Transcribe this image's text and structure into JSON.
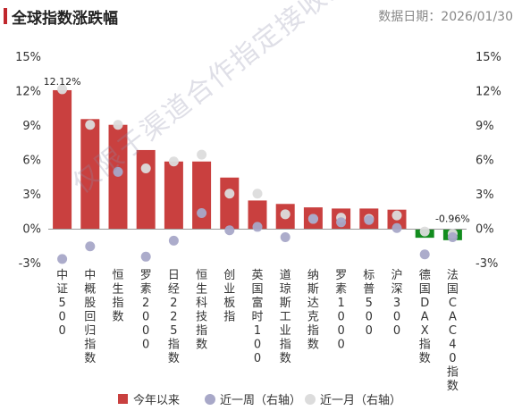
{
  "header": {
    "title": "全球指数涨跌幅",
    "date_label": "数据日期：2026/01/30"
  },
  "watermark": "仅限于渠道合作指定接收人使用",
  "colors": {
    "positive_bar": "#c9403f",
    "negative_bar": "#128c1e",
    "week_dot": "#a8a8c8",
    "month_dot": "#dcdcdc",
    "title_accent": "#c0272d"
  },
  "chart_data": {
    "type": "bar",
    "categories": [
      "中证500",
      "中概股回归指数",
      "恒生指数",
      "罗素2000",
      "日经225指数",
      "恒生科技指数",
      "创业板指",
      "英国富时100",
      "道琼斯工业指数",
      "纳斯达克指数",
      "罗素1000",
      "标普500",
      "沪深300",
      "德国DAX指数",
      "法国CAC40指数"
    ],
    "series": [
      {
        "name": "今年以来",
        "kind": "bar",
        "values": [
          12.12,
          9.6,
          9.1,
          6.9,
          5.9,
          5.9,
          4.5,
          2.5,
          2.2,
          1.9,
          1.8,
          1.8,
          1.7,
          -0.75,
          -0.96
        ]
      },
      {
        "name": "近一周（右轴）",
        "kind": "dot",
        "values": [
          -2.6,
          -1.5,
          5.0,
          -2.4,
          -1.0,
          1.4,
          -0.1,
          0.2,
          -0.7,
          0.9,
          0.6,
          0.8,
          0.1,
          -2.2,
          -0.7
        ]
      },
      {
        "name": "近一月（右轴）",
        "kind": "dot",
        "values": [
          12.2,
          9.1,
          9.1,
          5.3,
          5.9,
          6.5,
          3.1,
          3.1,
          1.3,
          0.9,
          1.0,
          0.9,
          1.2,
          -0.2,
          -0.4
        ]
      }
    ],
    "data_labels": [
      {
        "category": "中证500",
        "text": "12.12%"
      },
      {
        "category": "法国CAC40指数",
        "text": "-0.96%"
      }
    ],
    "ylim": [
      -3,
      15
    ],
    "y_ticks": [
      "-3%",
      "0%",
      "3%",
      "6%",
      "9%",
      "12%",
      "15%"
    ],
    "y_right_ticks": [
      "-3%",
      "0%",
      "3%",
      "6%",
      "9%",
      "12%",
      "15%"
    ],
    "grid": false,
    "legend_position": "bottom"
  }
}
